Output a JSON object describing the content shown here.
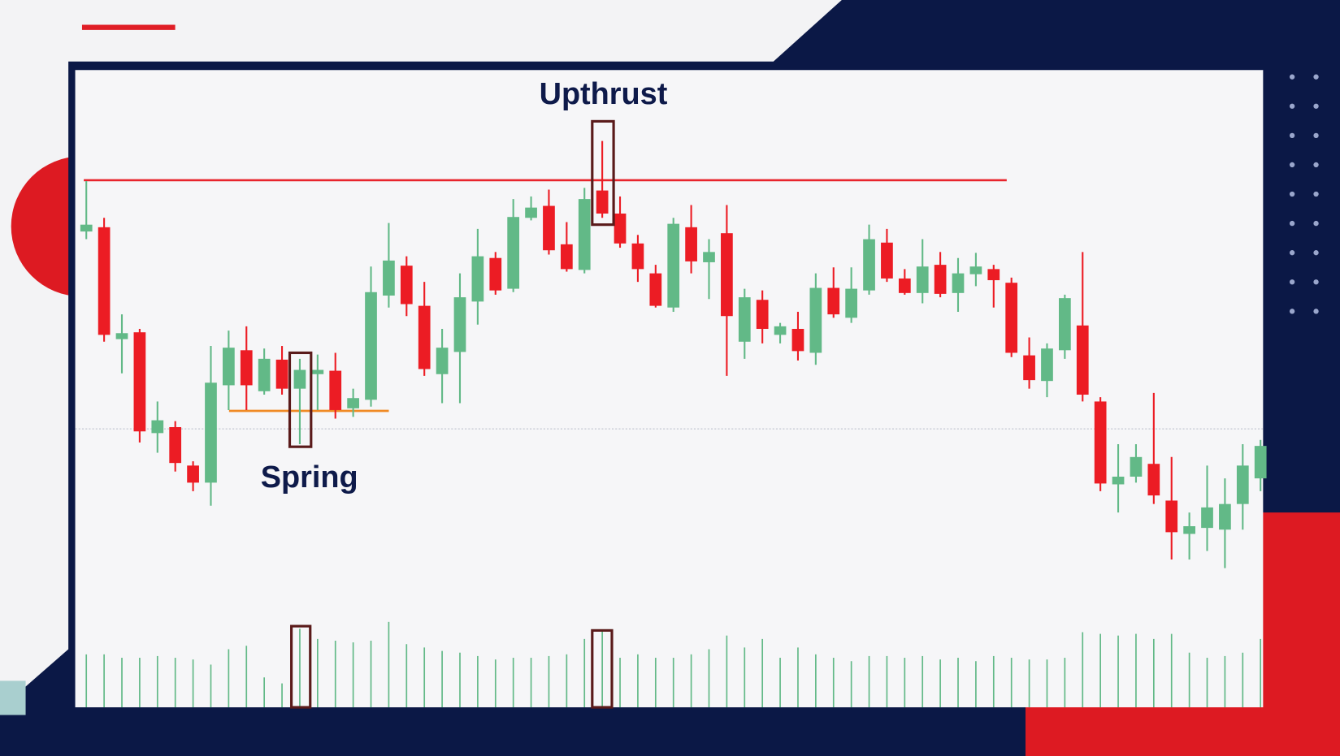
{
  "chart_data": {
    "type": "candlestick",
    "annotations": [
      "Upthrust",
      "Spring"
    ],
    "open": [
      85.8,
      86.8,
      60.6,
      62.2,
      38.6,
      40,
      31,
      27,
      49.8,
      58,
      48.4,
      55.8,
      49,
      52.4,
      53.2,
      44.4,
      46.4,
      70.8,
      77.8,
      68.4,
      52.4,
      57.6,
      69.4,
      79.6,
      72.4,
      89,
      91.8,
      82.8,
      76.8,
      95.4,
      90,
      83,
      76,
      68,
      86.8,
      78.6,
      85.4,
      60,
      69.8,
      61.6,
      63,
      57.4,
      72.6,
      65.6,
      72,
      83.2,
      74.8,
      71.4,
      78,
      71.4,
      75.8,
      77,
      73.8,
      56.8,
      50.8,
      58,
      63.8,
      46,
      26.6,
      28.4,
      31.4,
      22.8,
      15,
      16.4,
      16,
      22,
      28
    ],
    "high": [
      97.6,
      89,
      66.4,
      63,
      46,
      41.4,
      32,
      59,
      62.6,
      63.6,
      58.4,
      59,
      56,
      57,
      57.4,
      49,
      77.6,
      87.8,
      80,
      74,
      63,
      76,
      86.4,
      81,
      93.4,
      94,
      95.6,
      88,
      96,
      107,
      94,
      85,
      78,
      89,
      92,
      84,
      92,
      72.4,
      72,
      64.4,
      67,
      76,
      77.4,
      77.4,
      87.4,
      86.4,
      77,
      84,
      81,
      79.6,
      80.8,
      78,
      75,
      61,
      59.6,
      71,
      81,
      47,
      36,
      36,
      48,
      33,
      20,
      31,
      28,
      36,
      37
    ],
    "low": [
      84,
      60,
      52.6,
      36.4,
      34,
      29.6,
      25,
      21.6,
      44,
      44,
      47.6,
      47.6,
      36,
      44,
      42,
      42.4,
      44.8,
      68,
      66,
      52,
      45.6,
      45.6,
      64,
      71,
      71.6,
      88.4,
      80.4,
      76.4,
      76,
      89,
      82,
      74,
      68,
      67,
      76,
      70,
      52,
      56,
      59.6,
      59.6,
      55.6,
      54.6,
      65.6,
      64.4,
      71,
      74,
      71,
      69,
      70.4,
      67,
      73,
      68,
      56.4,
      49,
      47,
      56,
      46,
      25,
      20,
      27,
      22,
      9,
      9,
      11,
      7,
      16,
      25
    ],
    "close": [
      87.4,
      61.6,
      62,
      39,
      41.6,
      31.6,
      27,
      50.4,
      58.6,
      49.8,
      56,
      49,
      53.4,
      53.4,
      44,
      46.8,
      71.6,
      79,
      68.8,
      53.6,
      58.6,
      70.4,
      80,
      72,
      89.2,
      91.4,
      81.4,
      77,
      93.4,
      90,
      83,
      77,
      68.4,
      87.6,
      78.8,
      81,
      66,
      70.4,
      63,
      63.6,
      57.8,
      72.6,
      66.4,
      72.4,
      84,
      74.8,
      71.4,
      77.6,
      71.2,
      76,
      77.6,
      74.4,
      57.4,
      51,
      58.4,
      70.2,
      47.6,
      26.8,
      28.4,
      33,
      24,
      15.4,
      16.8,
      21.2,
      22,
      31,
      35.6
    ],
    "volume": [
      62,
      62,
      58,
      58,
      60,
      58,
      56,
      50,
      68,
      72,
      35,
      28,
      92,
      80,
      78,
      76,
      78,
      100,
      74,
      70,
      66,
      64,
      60,
      56,
      58,
      58,
      60,
      62,
      80,
      90,
      58,
      62,
      58,
      58,
      62,
      68,
      84,
      70,
      80,
      58,
      70,
      62,
      58,
      54,
      60,
      60,
      58,
      60,
      56,
      58,
      54,
      60,
      58,
      56,
      56,
      58,
      88,
      86,
      84,
      86,
      80,
      86,
      64,
      58,
      60,
      64,
      80
    ],
    "ylim": [
      0,
      120
    ],
    "volume_ylim": [
      0,
      110
    ],
    "resistance": 97.8,
    "support": 43.8,
    "reference_line": 39.6,
    "up_color": "#62b987",
    "down_color": "#ec1c24",
    "resistance_color": "#e8242c",
    "support_color": "#f08a24"
  }
}
